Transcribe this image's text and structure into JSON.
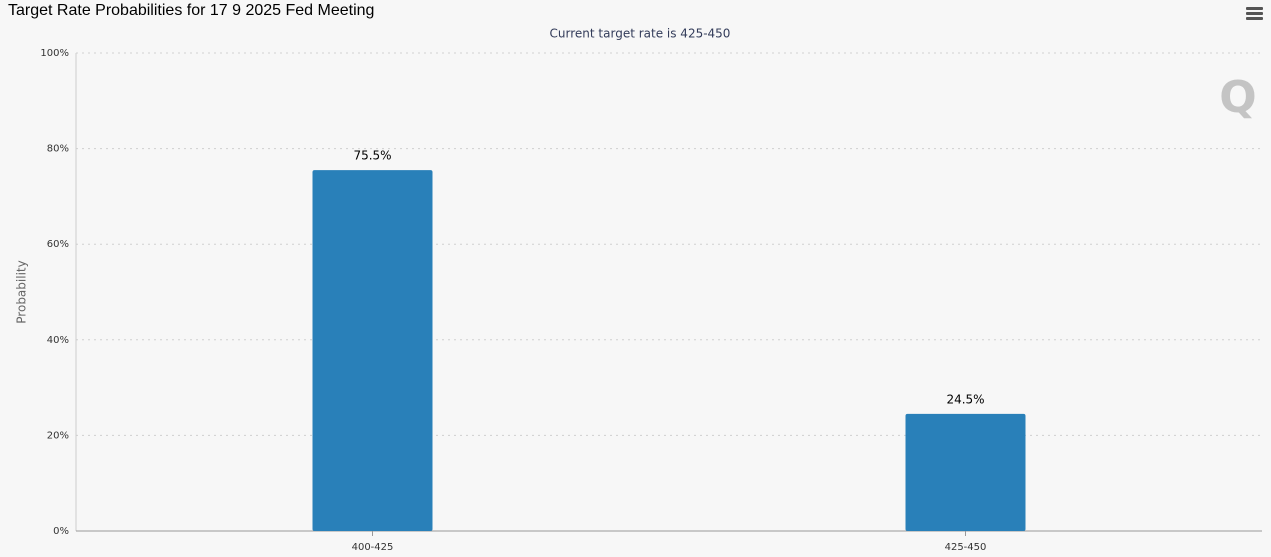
{
  "chart_data": {
    "type": "bar",
    "title": "Target Rate Probabilities for 17 9 2025 Fed Meeting",
    "subtitle": "Current target rate is 425-450",
    "y_label": "Probability",
    "watermark": "Q",
    "categories": [
      "400-425",
      "425-450"
    ],
    "values": [
      75.5,
      24.5
    ],
    "value_labels": [
      "75.5%",
      "24.5%"
    ],
    "color": "#2980b9",
    "ylim": [
      0,
      100
    ],
    "yticks": [
      {
        "value": 0,
        "label": "0%"
      },
      {
        "value": 20,
        "label": "20%"
      },
      {
        "value": 40,
        "label": "40%"
      },
      {
        "value": 60,
        "label": "60%"
      },
      {
        "value": 80,
        "label": "80%"
      },
      {
        "value": 100,
        "label": "100%"
      }
    ],
    "grid": true
  }
}
